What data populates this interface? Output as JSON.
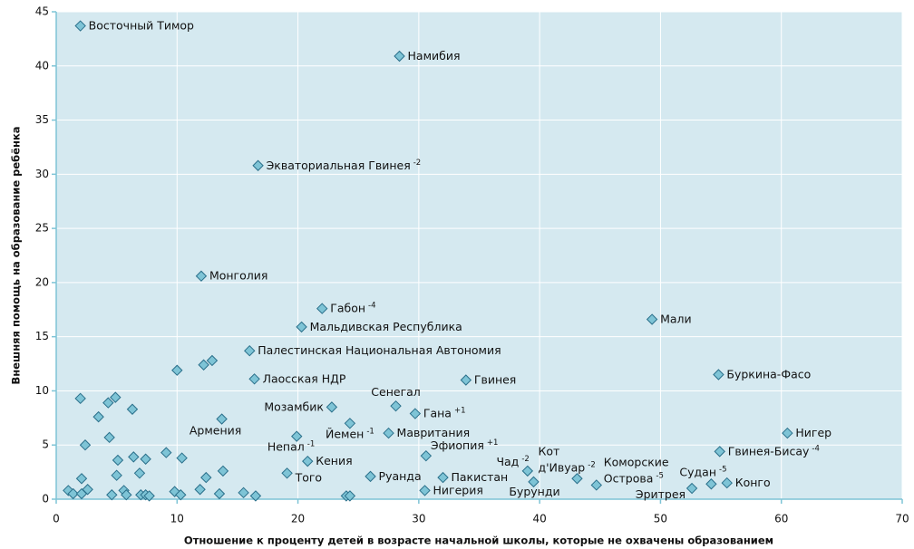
{
  "chart_data": {
    "type": "scatter",
    "xlabel": "Отношение к проценту детей в возрасте начальной школы, которые не охвачены образованием",
    "ylabel": "Внешняя помощь на образование ребёнка",
    "xlim": [
      0,
      70
    ],
    "ylim": [
      0,
      45
    ],
    "xticks": [
      0,
      10,
      20,
      30,
      40,
      50,
      60,
      70
    ],
    "yticks": [
      0,
      5,
      10,
      15,
      20,
      25,
      30,
      35,
      40,
      45
    ],
    "grid": true,
    "color": "#7ec4d6",
    "edgecolor": "#2a6f8a",
    "background": "#d5e9f0",
    "x": [
      2.0,
      28.4,
      16.7,
      12.0,
      22.0,
      20.3,
      49.3,
      16.0,
      54.8,
      16.4,
      33.9,
      22.8,
      28.1,
      29.7,
      13.7,
      24.3,
      27.5,
      60.5,
      19.9,
      30.6,
      54.9,
      20.8,
      19.1,
      39.0,
      43.1,
      44.7,
      54.2,
      55.5,
      52.6,
      26.0,
      32.0,
      30.5,
      39.5,
      2.0,
      3.5,
      2.4,
      4.3,
      4.9,
      6.3,
      4.4,
      5.1,
      5.0,
      6.4,
      7.4,
      6.9,
      9.1,
      10.4,
      10.0,
      12.2,
      12.9,
      12.4,
      13.8,
      11.9,
      1.0,
      1.4,
      2.1,
      2.1,
      2.6,
      4.6,
      5.6,
      5.8,
      7.0,
      7.4,
      7.7,
      9.8,
      10.3,
      13.5,
      15.5,
      16.5,
      24.0,
      24.3
    ],
    "values": [
      43.7,
      40.9,
      30.8,
      20.6,
      17.6,
      15.9,
      16.6,
      13.7,
      11.5,
      11.1,
      11.0,
      8.5,
      8.6,
      7.9,
      7.4,
      7.0,
      6.1,
      6.1,
      5.8,
      4.0,
      4.4,
      3.5,
      2.4,
      2.6,
      1.9,
      1.3,
      1.4,
      1.5,
      1.0,
      2.1,
      2.0,
      0.8,
      1.6,
      9.3,
      7.6,
      5.0,
      8.9,
      9.4,
      8.3,
      5.7,
      3.6,
      2.2,
      3.9,
      3.7,
      2.4,
      4.3,
      3.8,
      11.9,
      12.4,
      12.8,
      2.0,
      2.6,
      0.9,
      0.8,
      0.5,
      1.9,
      0.5,
      0.9,
      0.4,
      0.8,
      0.4,
      0.4,
      0.4,
      0.3,
      0.7,
      0.4,
      0.5,
      0.6,
      0.3,
      0.3,
      0.3
    ],
    "labels": [
      "Восточный Тимор",
      "Намибия",
      "Экваториальная Гвинея",
      "Монголия",
      "Габон",
      "Мальдивская Республика",
      "Мали",
      "Палестинская Национальная Автономия",
      "Буркина-Фасо",
      "Лаосская НДР",
      "Гвинея",
      "Мозамбик",
      "Сенегал",
      "Гана",
      "Армения",
      "Йемен",
      "Мавритания",
      "Нигер",
      "Непал",
      "Эфиопия",
      "Гвинея-Бисау",
      "Кения",
      "Того",
      "Чад",
      [
        "Кот",
        "д'Ивуар"
      ],
      [
        "Коморские",
        "Острова"
      ],
      "Судан",
      "Конго",
      "Эритрея",
      "Руанда",
      "Пакистан",
      "Нигерия",
      "Бурунди",
      null,
      null,
      null,
      null,
      null,
      null,
      null,
      null,
      null,
      null,
      null,
      null,
      null,
      null,
      null,
      null,
      null,
      null,
      null,
      null,
      null,
      null,
      null,
      null,
      null,
      null,
      null,
      null,
      null,
      null,
      null,
      null,
      null,
      null,
      null,
      null,
      null,
      null
    ],
    "notes": [
      null,
      null,
      "-2",
      null,
      "-4",
      null,
      null,
      null,
      null,
      null,
      null,
      null,
      null,
      "+1",
      null,
      "-1",
      null,
      null,
      "-1",
      "+1",
      "-4",
      null,
      null,
      "-2",
      "-2",
      "-5",
      "-5",
      null,
      null,
      null,
      null,
      null,
      null,
      null,
      null,
      null,
      null,
      null,
      null,
      null,
      null,
      null,
      null,
      null,
      null,
      null,
      null,
      null,
      null,
      null,
      null,
      null,
      null,
      null,
      null,
      null,
      null,
      null,
      null,
      null,
      null,
      null,
      null,
      null,
      null,
      null,
      null,
      null,
      null,
      null,
      null
    ]
  }
}
